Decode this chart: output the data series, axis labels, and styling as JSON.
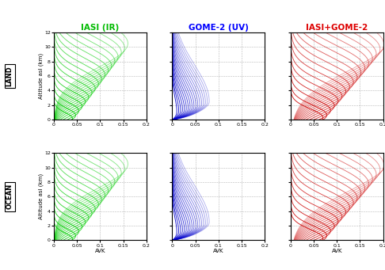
{
  "titles": [
    "IASI (IR)",
    "GOME-2 (UV)",
    "IASI+GOME-2"
  ],
  "title_colors": [
    "#00bb00",
    "#0000ff",
    "#dd0000"
  ],
  "row_labels": [
    "LAND",
    "OCEAN"
  ],
  "ylabel": "Altitude asl (km)",
  "xlabel": "AVK",
  "ylim": [
    0,
    12
  ],
  "xlim": [
    0,
    0.2
  ],
  "xticks": [
    0,
    0.05,
    0.1,
    0.15,
    0.2
  ],
  "yticks": [
    0,
    2,
    4,
    6,
    8,
    10,
    12
  ],
  "n_curves": 18,
  "background": "#ffffff",
  "IR_color": "#00cc00",
  "UV_color": "#0000cc",
  "COMB_color": "#cc0000"
}
